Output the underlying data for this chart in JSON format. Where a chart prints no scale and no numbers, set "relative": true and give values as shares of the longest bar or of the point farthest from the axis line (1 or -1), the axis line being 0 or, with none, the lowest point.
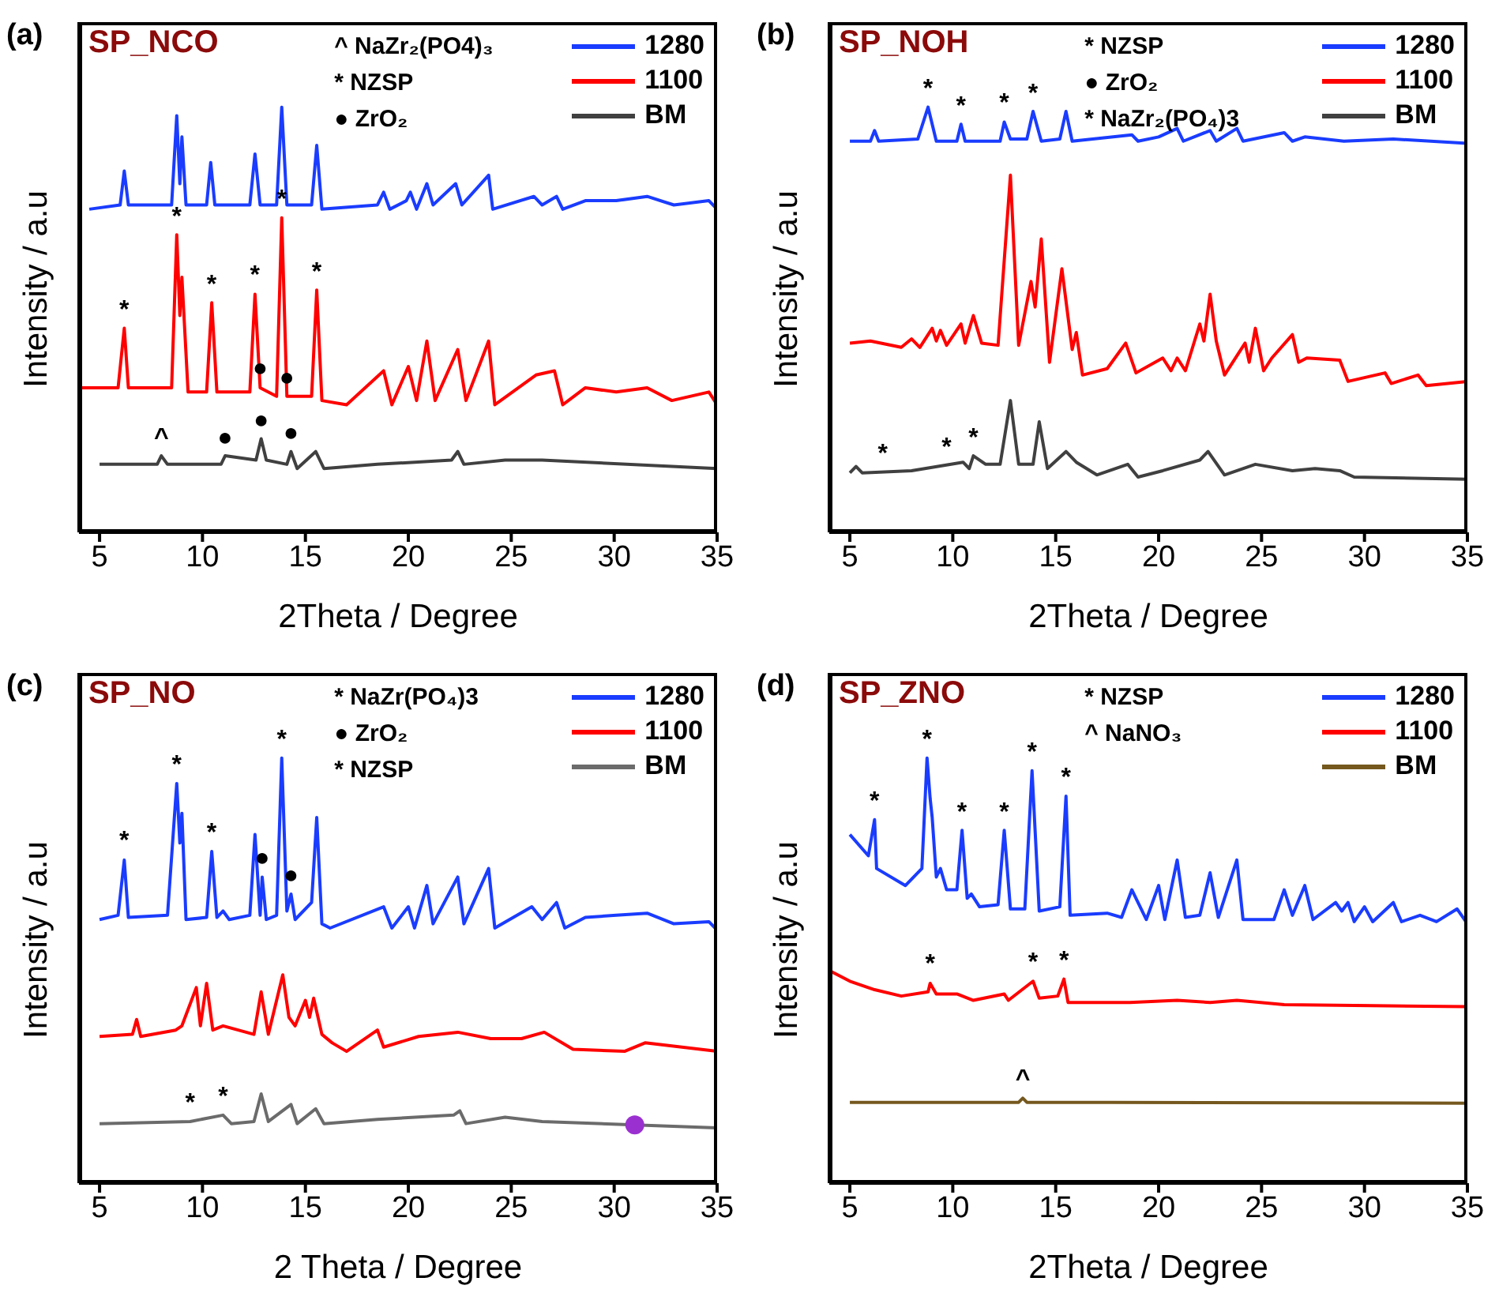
{
  "chart_data": [
    {
      "type": "line",
      "title": "(a)",
      "subtitle": "SP_NCO",
      "xlabel": "2Theta / Degree",
      "ylabel": "Intensity / a.u",
      "relative": true,
      "xlim": [
        4,
        35
      ],
      "xticks": [
        5,
        10,
        15,
        20,
        25,
        30,
        35
      ],
      "legend": "top right",
      "series": [
        {
          "name": "1280",
          "color": "#1a3cff",
          "x": [
            4.5,
            6.0,
            6.2,
            6.4,
            8.5,
            8.75,
            8.9,
            9.0,
            9.2,
            10.2,
            10.4,
            10.6,
            12.3,
            12.55,
            12.8,
            13.6,
            13.85,
            14.1,
            15.3,
            15.55,
            15.8,
            18.5,
            18.8,
            19.1,
            19.9,
            20.1,
            20.4,
            20.9,
            21.2,
            22.3,
            22.6,
            23.9,
            24.1,
            26.1,
            26.5,
            27.2,
            27.5,
            28.6,
            30.1,
            31.6,
            32.9,
            34.6,
            35
          ],
          "values": [
            0.76,
            0.77,
            0.85,
            0.77,
            0.77,
            0.98,
            0.82,
            0.93,
            0.77,
            0.77,
            0.87,
            0.77,
            0.77,
            0.89,
            0.77,
            0.77,
            1,
            0.77,
            0.77,
            0.91,
            0.76,
            0.77,
            0.8,
            0.76,
            0.78,
            0.8,
            0.76,
            0.82,
            0.77,
            0.82,
            0.77,
            0.84,
            0.76,
            0.79,
            0.77,
            0.79,
            0.76,
            0.78,
            0.78,
            0.79,
            0.77,
            0.78,
            0.76
          ]
        },
        {
          "name": "1100",
          "color": "#ff0000",
          "x": [
            4.0,
            5.9,
            6.2,
            6.4,
            8.5,
            8.75,
            8.9,
            9.0,
            9.3,
            10.2,
            10.45,
            10.7,
            12.3,
            12.55,
            12.8,
            13.6,
            13.85,
            14.1,
            15.3,
            15.55,
            15.8,
            17.0,
            18.8,
            19.2,
            20.0,
            20.4,
            20.9,
            21.3,
            22.4,
            22.8,
            23.9,
            24.2,
            26.2,
            27.1,
            27.5,
            28.6,
            30.1,
            31.6,
            32.8,
            34.6,
            35
          ],
          "values": [
            0.34,
            0.34,
            0.48,
            0.34,
            0.34,
            0.7,
            0.51,
            0.6,
            0.33,
            0.33,
            0.54,
            0.33,
            0.33,
            0.56,
            0.34,
            0.32,
            0.74,
            0.32,
            0.32,
            0.57,
            0.31,
            0.3,
            0.38,
            0.3,
            0.39,
            0.31,
            0.45,
            0.31,
            0.43,
            0.31,
            0.45,
            0.3,
            0.37,
            0.38,
            0.3,
            0.34,
            0.33,
            0.34,
            0.31,
            0.33,
            0.3
          ]
        },
        {
          "name": "BM",
          "color": "#404040",
          "x": [
            5,
            7.8,
            8.0,
            8.3,
            10.9,
            11.1,
            12.6,
            12.85,
            13.1,
            14.1,
            14.3,
            14.6,
            15.5,
            15.9,
            18.5,
            22.1,
            22.4,
            22.7,
            24.7,
            26.5,
            35
          ],
          "values": [
            0.16,
            0.16,
            0.18,
            0.16,
            0.16,
            0.18,
            0.17,
            0.22,
            0.17,
            0.16,
            0.19,
            0.15,
            0.19,
            0.15,
            0.16,
            0.17,
            0.19,
            0.16,
            0.17,
            0.17,
            0.15
          ]
        }
      ],
      "annotations": [
        "^ NaZr₂(PO4)₃",
        "* NZSP",
        "● ZrO₂",
        {
          "text": "*",
          "x": 6.2,
          "y": 0.48
        },
        {
          "text": "*",
          "x": 8.75,
          "y": 0.7
        },
        {
          "text": "*",
          "x": 10.45,
          "y": 0.54
        },
        {
          "text": "*",
          "x": 12.55,
          "y": 0.56
        },
        {
          "text": "*",
          "x": 13.85,
          "y": 0.74
        },
        {
          "text": "*",
          "x": 15.55,
          "y": 0.57
        },
        {
          "text": "●",
          "x": 12.8,
          "y": 0.34
        },
        {
          "text": "●",
          "x": 14.1,
          "y": 0.32
        },
        {
          "text": "●",
          "x": 11.1,
          "y": 0.18
        },
        {
          "text": "●",
          "x": 12.85,
          "y": 0.22
        },
        {
          "text": "●",
          "x": 14.3,
          "y": 0.19
        },
        {
          "text": "^",
          "x": 8.0,
          "y": 0.18
        }
      ]
    },
    {
      "type": "line",
      "title": "(b)",
      "subtitle": "SP_NOH",
      "xlabel": "2Theta / Degree",
      "ylabel": "Intensity / a.u",
      "relative": true,
      "xlim": [
        4,
        35
      ],
      "xticks": [
        5,
        10,
        15,
        20,
        25,
        30,
        35
      ],
      "legend": "top right",
      "series": [
        {
          "name": "1280",
          "color": "#1a3cff",
          "x": [
            5,
            6.0,
            6.2,
            6.4,
            8.3,
            8.8,
            9.2,
            10.2,
            10.4,
            10.6,
            12.3,
            12.5,
            12.8,
            13.6,
            13.9,
            14.3,
            15.2,
            15.5,
            15.8,
            18.7,
            19.0,
            20.0,
            20.9,
            21.2,
            22.5,
            22.8,
            23.8,
            24.1,
            26.1,
            26.5,
            27.1,
            29.0,
            31.4,
            35
          ],
          "values": [
            0.92,
            0.92,
            0.945,
            0.92,
            0.925,
            1,
            0.92,
            0.92,
            0.96,
            0.92,
            0.92,
            0.965,
            0.925,
            0.925,
            0.99,
            0.92,
            0.925,
            0.99,
            0.92,
            0.935,
            0.92,
            0.93,
            0.95,
            0.92,
            0.945,
            0.92,
            0.95,
            0.92,
            0.94,
            0.92,
            0.93,
            0.92,
            0.925,
            0.915
          ]
        },
        {
          "name": "1100",
          "color": "#ff0000",
          "x": [
            5,
            6.0,
            7.5,
            8.0,
            8.4,
            9.0,
            9.2,
            9.4,
            9.7,
            10.4,
            10.6,
            11.0,
            11.4,
            12.2,
            12.8,
            13.2,
            13.8,
            14.0,
            14.3,
            14.7,
            15.3,
            15.8,
            16.0,
            16.3,
            17.5,
            18.4,
            18.9,
            20.2,
            20.6,
            20.9,
            21.3,
            22.0,
            22.2,
            22.5,
            22.8,
            23.2,
            24.2,
            24.4,
            24.7,
            25.1,
            25.5,
            26.5,
            26.8,
            27.2,
            28.8,
            29.2,
            31.0,
            31.3,
            32.6,
            33.0,
            35
          ],
          "values": [
            0.445,
            0.45,
            0.435,
            0.455,
            0.435,
            0.48,
            0.45,
            0.475,
            0.44,
            0.49,
            0.445,
            0.51,
            0.445,
            0.44,
            0.84,
            0.44,
            0.59,
            0.53,
            0.69,
            0.4,
            0.62,
            0.43,
            0.47,
            0.37,
            0.385,
            0.445,
            0.375,
            0.41,
            0.38,
            0.41,
            0.38,
            0.49,
            0.45,
            0.56,
            0.45,
            0.37,
            0.445,
            0.4,
            0.48,
            0.38,
            0.41,
            0.465,
            0.4,
            0.41,
            0.405,
            0.355,
            0.375,
            0.35,
            0.37,
            0.345,
            0.355
          ]
        },
        {
          "name": "BM",
          "color": "#404040",
          "x": [
            5,
            5.3,
            5.6,
            8.0,
            10.5,
            10.8,
            11.0,
            11.6,
            12.3,
            12.8,
            13.2,
            13.9,
            14.2,
            14.6,
            15.5,
            16.0,
            17.0,
            18.5,
            19.0,
            20.2,
            22.0,
            22.4,
            23.2,
            24.7,
            26.5,
            27.6,
            28.8,
            29.5,
            35
          ],
          "values": [
            0.14,
            0.155,
            0.14,
            0.145,
            0.165,
            0.15,
            0.18,
            0.16,
            0.16,
            0.31,
            0.16,
            0.16,
            0.26,
            0.15,
            0.19,
            0.165,
            0.135,
            0.16,
            0.13,
            0.145,
            0.17,
            0.19,
            0.135,
            0.16,
            0.145,
            0.15,
            0.145,
            0.13,
            0.125
          ]
        }
      ],
      "annotations": [
        "* NZSP",
        "● ZrO₂",
        "* NaZr₂(PO₄)3",
        {
          "text": "*",
          "x": 8.8,
          "y": 1
        },
        {
          "text": "*",
          "x": 10.4,
          "y": 0.96
        },
        {
          "text": "*",
          "x": 12.5,
          "y": 0.965
        },
        {
          "text": "*",
          "x": 13.9,
          "y": 0.99
        },
        {
          "text": "*",
          "x": 6.6,
          "y": 0.142
        },
        {
          "text": "*",
          "x": 9.7,
          "y": 0.157
        },
        {
          "text": "*",
          "x": 11.0,
          "y": 0.18
        }
      ]
    },
    {
      "type": "line",
      "title": "(c)",
      "subtitle": "SP_NO",
      "xlabel": "2 Theta / Degree",
      "ylabel": "Intensity / a.u",
      "relative": true,
      "xlim": [
        4,
        35
      ],
      "xticks": [
        5,
        10,
        15,
        20,
        25,
        30,
        35
      ],
      "legend": "top right",
      "series": [
        {
          "name": "1280",
          "color": "#1a3cff",
          "x": [
            5,
            5.9,
            6.2,
            6.4,
            8.3,
            8.75,
            8.9,
            9.0,
            9.2,
            10.2,
            10.45,
            10.7,
            11.0,
            11.3,
            12.3,
            12.55,
            12.8,
            12.9,
            13.1,
            13.6,
            13.85,
            14.1,
            14.3,
            14.5,
            15.3,
            15.55,
            15.8,
            16.2,
            18.8,
            19.2,
            20.0,
            20.3,
            20.9,
            21.2,
            22.4,
            22.7,
            23.9,
            24.2,
            26.0,
            26.5,
            27.2,
            27.6,
            28.6,
            30.1,
            31.6,
            32.9,
            34.6,
            35
          ],
          "values": [
            0.62,
            0.63,
            0.76,
            0.625,
            0.63,
            0.94,
            0.8,
            0.87,
            0.62,
            0.625,
            0.78,
            0.625,
            0.64,
            0.62,
            0.63,
            0.82,
            0.63,
            0.72,
            0.62,
            0.63,
            1,
            0.64,
            0.68,
            0.62,
            0.66,
            0.86,
            0.61,
            0.6,
            0.65,
            0.6,
            0.65,
            0.6,
            0.7,
            0.61,
            0.72,
            0.61,
            0.74,
            0.6,
            0.65,
            0.62,
            0.66,
            0.6,
            0.625,
            0.63,
            0.635,
            0.61,
            0.615,
            0.595
          ]
        },
        {
          "name": "1100",
          "color": "#ff0000",
          "x": [
            5,
            6.6,
            6.8,
            7.0,
            8.7,
            9.0,
            9.7,
            9.9,
            10.2,
            10.5,
            11.0,
            12.5,
            12.85,
            13.2,
            13.9,
            14.2,
            14.5,
            15.0,
            15.2,
            15.4,
            15.8,
            16.3,
            17.0,
            18.5,
            18.8,
            20.5,
            22.4,
            24.0,
            25.5,
            26.6,
            28.0,
            30.5,
            31.5,
            35
          ],
          "values": [
            0.345,
            0.35,
            0.385,
            0.345,
            0.36,
            0.37,
            0.46,
            0.37,
            0.47,
            0.36,
            0.37,
            0.35,
            0.45,
            0.35,
            0.49,
            0.39,
            0.37,
            0.43,
            0.39,
            0.435,
            0.35,
            0.33,
            0.31,
            0.36,
            0.32,
            0.345,
            0.355,
            0.34,
            0.34,
            0.355,
            0.315,
            0.31,
            0.33,
            0.31
          ]
        },
        {
          "name": "BM",
          "color": "#6b6b6b",
          "x": [
            5,
            9.4,
            11.0,
            11.4,
            12.5,
            12.85,
            13.2,
            14.3,
            14.6,
            15.5,
            15.9,
            18.5,
            22.2,
            22.5,
            22.8,
            24.7,
            26.5,
            35
          ],
          "values": [
            0.14,
            0.145,
            0.16,
            0.14,
            0.145,
            0.21,
            0.145,
            0.185,
            0.14,
            0.175,
            0.14,
            0.15,
            0.16,
            0.17,
            0.14,
            0.155,
            0.145,
            0.13
          ]
        },
        {
          "type": "scatter",
          "color": "#9b30d0",
          "x": [
            31.0
          ],
          "values": [
            0.137
          ]
        }
      ],
      "annotations": [
        "* NaZr(PO₄)3",
        "● ZrO₂",
        "* NZSP",
        {
          "text": "*",
          "x": 6.2,
          "y": 0.76
        },
        {
          "text": "*",
          "x": 8.75,
          "y": 0.94
        },
        {
          "text": "*",
          "x": 10.45,
          "y": 0.78
        },
        {
          "text": "*",
          "x": 13.85,
          "y": 1
        },
        {
          "text": "●",
          "x": 12.9,
          "y": 0.72
        },
        {
          "text": "●",
          "x": 14.3,
          "y": 0.68
        },
        {
          "text": "*",
          "x": 9.4,
          "y": 0.145
        },
        {
          "text": "*",
          "x": 11.0,
          "y": 0.16
        }
      ]
    },
    {
      "type": "line",
      "title": "(d)",
      "subtitle": "SP_ZNO",
      "xlabel": "2Theta / Degree",
      "ylabel": "Intensity / a.u",
      "relative": true,
      "xlim": [
        4,
        35
      ],
      "xticks": [
        5,
        10,
        15,
        20,
        25,
        30,
        35
      ],
      "legend": "top right",
      "series": [
        {
          "name": "1280",
          "color": "#1a3cff",
          "x": [
            5,
            5.9,
            6.2,
            6.3,
            7.7,
            8.5,
            8.75,
            8.9,
            9.0,
            9.2,
            9.4,
            9.7,
            10.2,
            10.45,
            10.7,
            10.9,
            11.3,
            12.2,
            12.5,
            12.8,
            13.5,
            13.85,
            14.2,
            15.2,
            15.5,
            15.7,
            17.5,
            18.2,
            18.7,
            19.4,
            20.0,
            20.3,
            20.9,
            21.3,
            22.0,
            22.5,
            22.9,
            23.8,
            24.1,
            25.6,
            26.1,
            26.5,
            27.1,
            27.5,
            28.6,
            28.9,
            29.2,
            29.5,
            30.0,
            30.4,
            31.4,
            31.8,
            32.7,
            33.5,
            34.5,
            35
          ],
          "values": [
            0.82,
            0.77,
            0.855,
            0.74,
            0.7,
            0.74,
            1,
            0.905,
            0.86,
            0.72,
            0.74,
            0.69,
            0.69,
            0.83,
            0.67,
            0.68,
            0.65,
            0.655,
            0.83,
            0.645,
            0.645,
            0.97,
            0.64,
            0.65,
            0.91,
            0.63,
            0.635,
            0.625,
            0.69,
            0.62,
            0.7,
            0.62,
            0.76,
            0.625,
            0.63,
            0.73,
            0.625,
            0.76,
            0.62,
            0.62,
            0.69,
            0.63,
            0.7,
            0.62,
            0.66,
            0.64,
            0.66,
            0.615,
            0.65,
            0.615,
            0.66,
            0.615,
            0.63,
            0.615,
            0.645,
            0.61
          ]
        },
        {
          "name": "1100",
          "color": "#ff0000",
          "x": [
            4.0,
            5.0,
            6.2,
            7.5,
            8.8,
            8.9,
            9.2,
            10.2,
            11.0,
            12.5,
            12.7,
            13.9,
            14.2,
            15.1,
            15.4,
            15.6,
            18.6,
            20.9,
            22.5,
            23.8,
            26.1,
            35
          ],
          "values": [
            0.5,
            0.475,
            0.455,
            0.44,
            0.45,
            0.47,
            0.445,
            0.445,
            0.43,
            0.445,
            0.43,
            0.475,
            0.435,
            0.44,
            0.48,
            0.425,
            0.425,
            0.43,
            0.425,
            0.43,
            0.42,
            0.415
          ]
        },
        {
          "name": "BM",
          "color": "#75581e",
          "x": [
            5,
            13.2,
            13.4,
            13.6,
            17.6,
            35
          ],
          "values": [
            0.19,
            0.19,
            0.2,
            0.19,
            0.19,
            0.188
          ]
        }
      ],
      "annotations": [
        "* NZSP",
        "^ NaNO₃",
        {
          "text": "*",
          "x": 6.2,
          "y": 0.855
        },
        {
          "text": "*",
          "x": 8.75,
          "y": 1
        },
        {
          "text": "*",
          "x": 10.45,
          "y": 0.83
        },
        {
          "text": "*",
          "x": 12.5,
          "y": 0.83
        },
        {
          "text": "*",
          "x": 13.85,
          "y": 0.97
        },
        {
          "text": "*",
          "x": 15.5,
          "y": 0.91
        },
        {
          "text": "*",
          "x": 8.9,
          "y": 0.47
        },
        {
          "text": "*",
          "x": 13.9,
          "y": 0.475
        },
        {
          "text": "*",
          "x": 15.4,
          "y": 0.48
        },
        {
          "text": "^",
          "x": 13.4,
          "y": 0.2
        }
      ]
    }
  ]
}
